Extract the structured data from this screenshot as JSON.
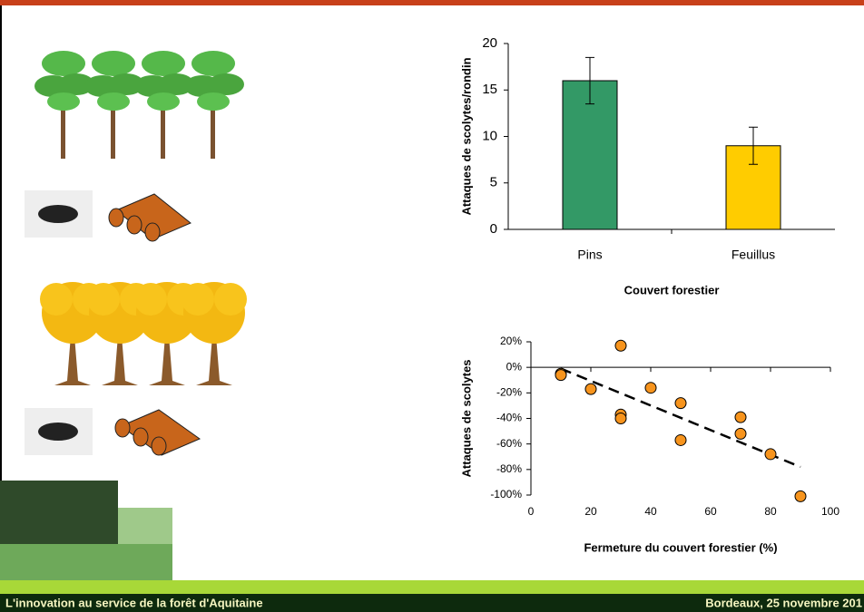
{
  "chart_data": [
    {
      "type": "bar",
      "ylabel": "Attaques de scolytes/rondin",
      "xlabel": "Couvert forestier",
      "categories": [
        "Pins",
        "Feuillus"
      ],
      "values": [
        16,
        9
      ],
      "errors": [
        2.5,
        2
      ],
      "colors": [
        "#339966",
        "#ffcc00"
      ],
      "ylim": [
        0,
        20
      ],
      "yticks": [
        0,
        5,
        10,
        15,
        20
      ]
    },
    {
      "type": "scatter",
      "ylabel": "Attaques de scolytes",
      "xlabel": "Fermeture du couvert forestier (%)",
      "x": [
        10,
        10,
        20,
        30,
        30,
        30,
        40,
        50,
        50,
        70,
        70,
        80,
        90
      ],
      "values": [
        -5,
        -6,
        -17,
        17,
        -37,
        -40,
        -16,
        -28,
        -57,
        -39,
        -52,
        -68,
        -101
      ],
      "color": "#f7941d",
      "trendline": {
        "x": [
          10,
          90
        ],
        "y": [
          -1,
          -78
        ]
      },
      "xlim": [
        0,
        100
      ],
      "xticks": [
        0,
        20,
        40,
        60,
        80,
        100
      ],
      "ylim": [
        -100,
        20
      ],
      "yticks": [
        {
          "value": 20,
          "label": "20%"
        },
        {
          "value": 0,
          "label": "0%"
        },
        {
          "value": -20,
          "label": "-20%"
        },
        {
          "value": -40,
          "label": "-40%"
        },
        {
          "value": -60,
          "label": "-60%"
        },
        {
          "value": -80,
          "label": "-80%"
        },
        {
          "value": -100,
          "label": "-100%"
        }
      ]
    }
  ],
  "footer": {
    "left": "L'innovation au service de la forêt d'Aquitaine",
    "right": "Bordeaux, 25 novembre 201"
  }
}
